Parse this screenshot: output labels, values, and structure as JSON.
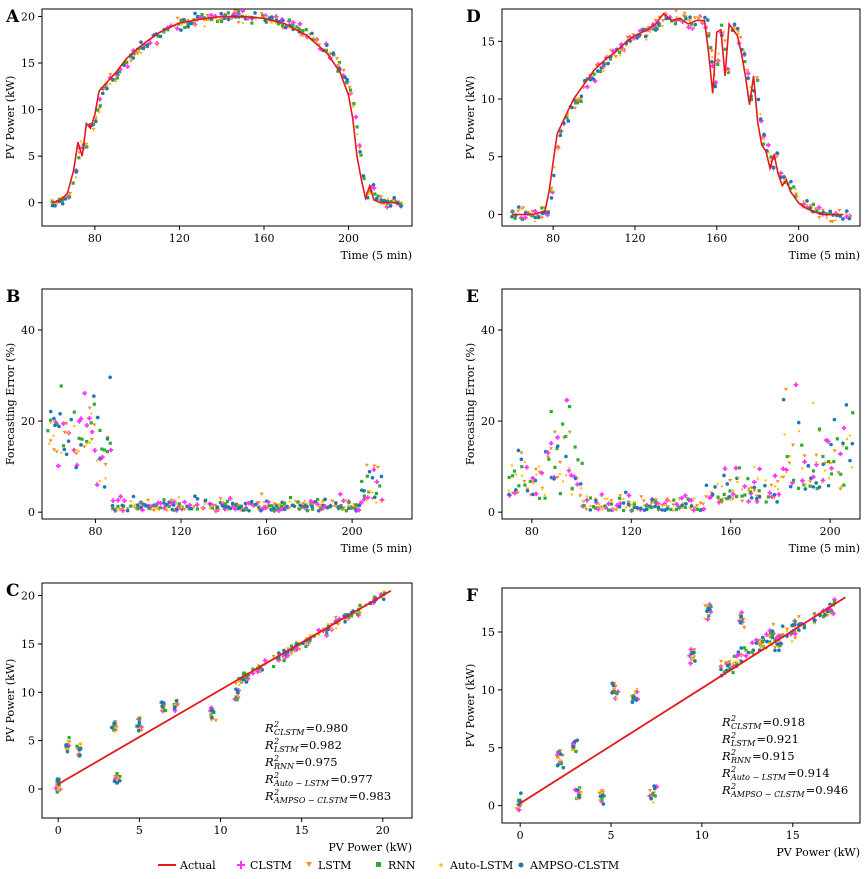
{
  "colors": {
    "actual": "#e31a1c",
    "clstm": "#ff33ff",
    "lstm": "#ff8c1a",
    "rnn": "#33aa33",
    "auto_lstm": "#ffc000",
    "ampso_clstm": "#1f77b4"
  },
  "legend": [
    {
      "key": "actual",
      "label": "Actual",
      "marker": "line"
    },
    {
      "key": "clstm",
      "label": "CLSTM",
      "marker": "plus"
    },
    {
      "key": "lstm",
      "label": "LSTM",
      "marker": "triangle"
    },
    {
      "key": "rnn",
      "label": "RNN",
      "marker": "square"
    },
    {
      "key": "auto_lstm",
      "label": "Auto-LSTM",
      "marker": "star"
    },
    {
      "key": "ampso_clstm",
      "label": "AMPSO-CLSTM",
      "marker": "circle"
    }
  ],
  "chart_data": [
    {
      "id": "A",
      "label": "A",
      "type": "line+scatter",
      "ylabel": "PV Power (kW)",
      "xlabel": "Time (5 min)",
      "xlim": [
        55,
        230
      ],
      "ylim": [
        -2.5,
        20.8
      ],
      "xticks": [
        "80",
        "120",
        "160",
        "200"
      ],
      "xtickvals": [
        80,
        120,
        160,
        200
      ],
      "yticks": [
        "0",
        "5",
        "10",
        "15",
        "20"
      ],
      "ytickvals": [
        0,
        5,
        10,
        15,
        20
      ],
      "actual": [
        [
          60,
          0
        ],
        [
          64,
          0.3
        ],
        [
          67,
          1
        ],
        [
          70,
          3.5
        ],
        [
          72,
          6.5
        ],
        [
          74,
          5
        ],
        [
          76,
          8.5
        ],
        [
          78,
          8
        ],
        [
          80,
          9.5
        ],
        [
          82,
          12
        ],
        [
          86,
          13
        ],
        [
          90,
          14
        ],
        [
          95,
          15.5
        ],
        [
          100,
          16.5
        ],
        [
          105,
          17.4
        ],
        [
          110,
          18.2
        ],
        [
          115,
          18.8
        ],
        [
          120,
          19.3
        ],
        [
          130,
          19.7
        ],
        [
          140,
          20
        ],
        [
          150,
          20
        ],
        [
          160,
          19.8
        ],
        [
          170,
          19.2
        ],
        [
          180,
          18
        ],
        [
          190,
          16
        ],
        [
          196,
          14
        ],
        [
          200,
          11.5
        ],
        [
          202,
          9
        ],
        [
          204,
          5
        ],
        [
          206,
          2.5
        ],
        [
          208,
          0.5
        ],
        [
          210,
          1.8
        ],
        [
          212,
          0.3
        ],
        [
          215,
          0
        ],
        [
          222,
          0
        ],
        [
          224,
          -0.2
        ]
      ],
      "series_model": "actual",
      "scatter_spread": 0.9
    },
    {
      "id": "D",
      "label": "D",
      "type": "line+scatter",
      "ylabel": "PV Power (kW)",
      "xlabel": "Time (5 min)",
      "xlim": [
        55,
        230
      ],
      "ylim": [
        -1.0,
        17.8
      ],
      "xticks": [
        "80",
        "120",
        "160",
        "200"
      ],
      "xtickvals": [
        80,
        120,
        160,
        200
      ],
      "yticks": [
        "0",
        "5",
        "10",
        "15"
      ],
      "ytickvals": [
        0,
        5,
        10,
        15
      ],
      "actual": [
        [
          60,
          0
        ],
        [
          70,
          0
        ],
        [
          76,
          0.3
        ],
        [
          78,
          2
        ],
        [
          80,
          4.5
        ],
        [
          82,
          7
        ],
        [
          86,
          8.5
        ],
        [
          90,
          10
        ],
        [
          96,
          11.5
        ],
        [
          100,
          12.5
        ],
        [
          106,
          13.5
        ],
        [
          110,
          14
        ],
        [
          116,
          15
        ],
        [
          120,
          15.5
        ],
        [
          126,
          16
        ],
        [
          130,
          16.5
        ],
        [
          134,
          17.4
        ],
        [
          138,
          16.8
        ],
        [
          142,
          17
        ],
        [
          146,
          16.5
        ],
        [
          150,
          16.8
        ],
        [
          154,
          16.8
        ],
        [
          156,
          14
        ],
        [
          158,
          10.5
        ],
        [
          160,
          15.8
        ],
        [
          162,
          16
        ],
        [
          164,
          12
        ],
        [
          166,
          16.5
        ],
        [
          170,
          15.5
        ],
        [
          172,
          14
        ],
        [
          174,
          12
        ],
        [
          176,
          9.5
        ],
        [
          178,
          12
        ],
        [
          180,
          8
        ],
        [
          182,
          6
        ],
        [
          184,
          5.5
        ],
        [
          186,
          4
        ],
        [
          188,
          5.2
        ],
        [
          190,
          3.5
        ],
        [
          192,
          2.5
        ],
        [
          194,
          3
        ],
        [
          196,
          2
        ],
        [
          198,
          1.5
        ],
        [
          200,
          1
        ],
        [
          204,
          0.5
        ],
        [
          208,
          0.2
        ],
        [
          212,
          0
        ],
        [
          222,
          0
        ]
      ],
      "series_model": "actual",
      "scatter_spread": 1.0
    },
    {
      "id": "B",
      "label": "B",
      "type": "scatter",
      "ylabel": "Forecasting Error (%)",
      "xlabel": "Time (5 min)",
      "xlim": [
        55,
        228
      ],
      "ylim": [
        -1.5,
        49
      ],
      "xticks": [
        "80",
        "120",
        "160",
        "200"
      ],
      "xtickvals": [
        80,
        120,
        160,
        200
      ],
      "yticks": [
        "0",
        "20",
        "40"
      ],
      "ytickvals": [
        0,
        20,
        40
      ]
    },
    {
      "id": "E",
      "label": "E",
      "type": "scatter",
      "ylabel": "Forecasting Error (%)",
      "xlabel": "Time (5 min)",
      "xlim": [
        68,
        212
      ],
      "ylim": [
        -1.5,
        49
      ],
      "xticks": [
        "80",
        "120",
        "160",
        "200"
      ],
      "xtickvals": [
        80,
        120,
        160,
        200
      ],
      "yticks": [
        "0",
        "20",
        "40"
      ],
      "ytickvals": [
        0,
        20,
        40
      ]
    },
    {
      "id": "C",
      "label": "C",
      "type": "scatter",
      "ylabel": "PV Power (kW)",
      "xlabel": "PV Power (kW)",
      "xlim": [
        -1.0,
        21.8
      ],
      "ylim": [
        -3.0,
        21.3
      ],
      "xticks": [
        "0",
        "5",
        "10",
        "15",
        "20"
      ],
      "xtickvals": [
        0,
        5,
        10,
        15,
        20
      ],
      "yticks": [
        "0",
        "5",
        "10",
        "15",
        "20"
      ],
      "ytickvals": [
        0,
        5,
        10,
        15,
        20
      ],
      "fit_line": [
        [
          0,
          0.5
        ],
        [
          20.5,
          20.5
        ]
      ],
      "r2": [
        {
          "sub": "CLSTM",
          "value": "=0.980"
        },
        {
          "sub": "LSTM",
          "value": "=0.982"
        },
        {
          "sub": "RNN",
          "value": "=0.975"
        },
        {
          "sub": "Auto − LSTM",
          "value": "=0.977"
        },
        {
          "sub": "AMPSO − CLSTM",
          "value": "=0.983"
        }
      ]
    },
    {
      "id": "F",
      "label": "F",
      "type": "scatter",
      "ylabel": "PV Power (kW)",
      "xlabel": "PV Power (kW)",
      "xlim": [
        -1.0,
        18.7
      ],
      "ylim": [
        -1.5,
        18.8
      ],
      "xticks": [
        "0",
        "5",
        "10",
        "15"
      ],
      "xtickvals": [
        0,
        5,
        10,
        15
      ],
      "yticks": [
        "0",
        "5",
        "10",
        "15"
      ],
      "ytickvals": [
        0,
        5,
        10,
        15
      ],
      "fit_line": [
        [
          0,
          0.2
        ],
        [
          17.9,
          18
        ]
      ],
      "r2": [
        {
          "sub": "CLSTM",
          "value": "=0.918"
        },
        {
          "sub": "LSTM",
          "value": "=0.921"
        },
        {
          "sub": "RNN",
          "value": "=0.915"
        },
        {
          "sub": "Auto − LSTM",
          "value": "=0.914"
        },
        {
          "sub": "AMPSO − CLSTM",
          "value": "=0.946"
        }
      ]
    }
  ]
}
